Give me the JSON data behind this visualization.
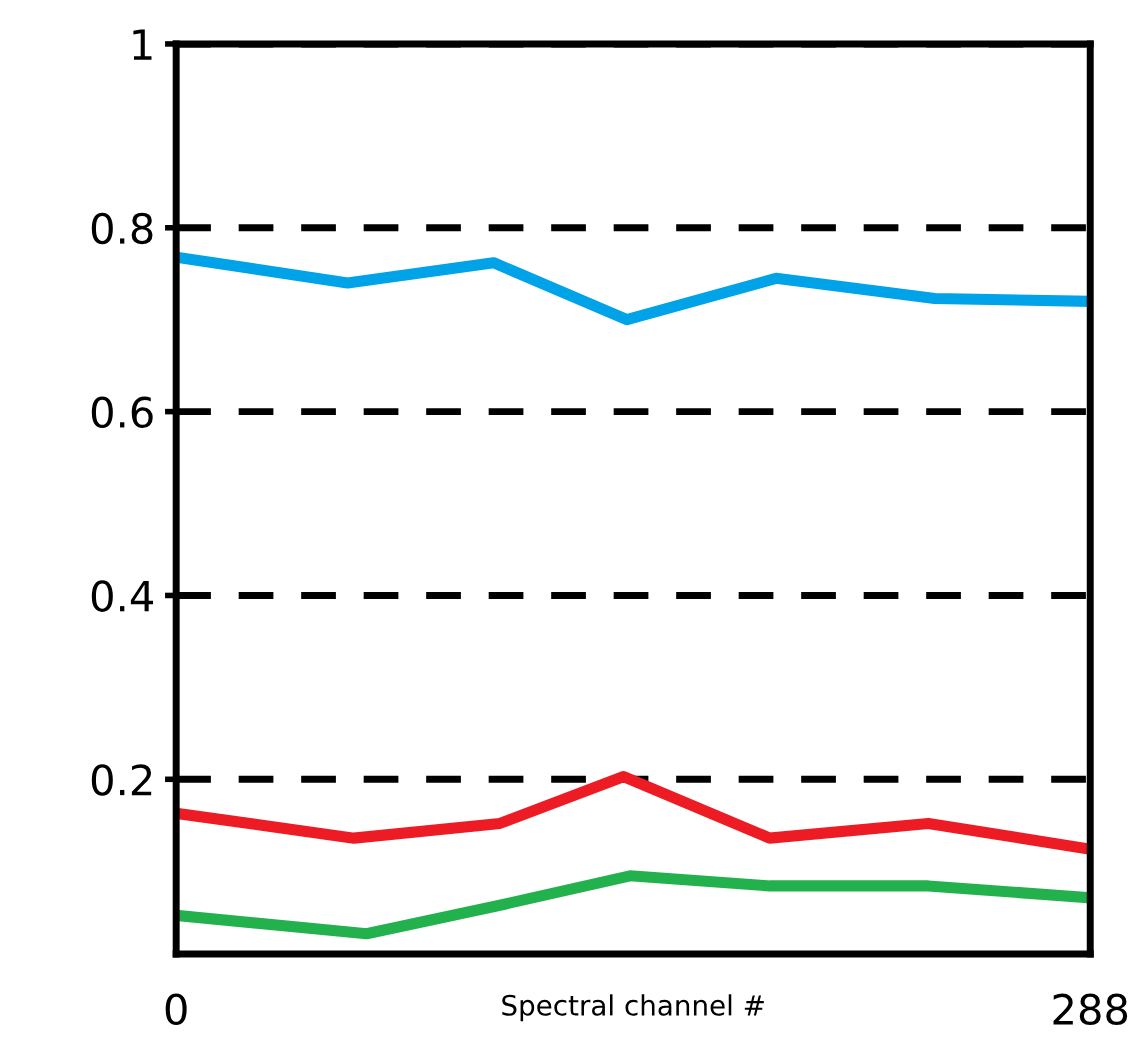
{
  "chart_data": {
    "type": "line",
    "xlabel": "Spectral channel #",
    "xlim": [
      0,
      288
    ],
    "xticks": [
      0,
      288
    ],
    "ylim": [
      0.01,
      1
    ],
    "yticks": [
      0.2,
      0.4,
      0.6,
      0.8,
      1
    ],
    "grid": "y",
    "marker": "none",
    "line_style": "solid",
    "series": [
      {
        "color": "#00a2e8",
        "x": [
          0,
          54,
          100,
          142,
          189,
          239,
          288
        ],
        "values": [
          0.768,
          0.74,
          0.762,
          0.7,
          0.745,
          0.723,
          0.72
        ]
      },
      {
        "color": "#ed1c24",
        "x": [
          0,
          56,
          102,
          141,
          187,
          237,
          288
        ],
        "values": [
          0.163,
          0.136,
          0.152,
          0.203,
          0.136,
          0.152,
          0.124
        ]
      },
      {
        "color": "#22b14c",
        "x": [
          0,
          60,
          102,
          143,
          187,
          237,
          288
        ],
        "values": [
          0.052,
          0.032,
          0.063,
          0.095,
          0.084,
          0.084,
          0.071
        ]
      }
    ]
  }
}
